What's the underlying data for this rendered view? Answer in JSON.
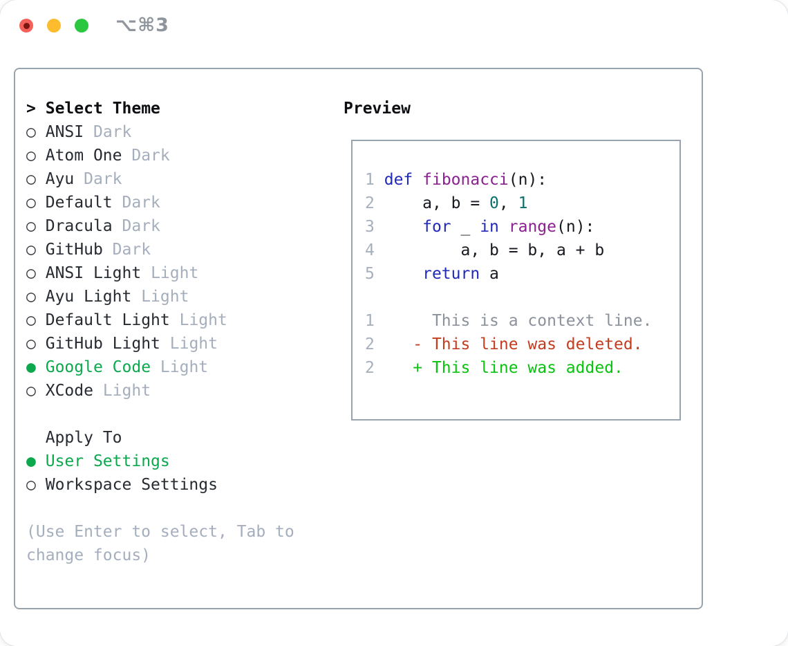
{
  "window": {
    "title": "⌥⌘3"
  },
  "theme_picker": {
    "header_marker": ">",
    "header": "Select Theme",
    "unselected_marker": "○",
    "selected_marker": "●",
    "items": [
      {
        "name": "ANSI",
        "variant": "Dark",
        "selected": false
      },
      {
        "name": "Atom One",
        "variant": "Dark",
        "selected": false
      },
      {
        "name": "Ayu",
        "variant": "Dark",
        "selected": false
      },
      {
        "name": "Default",
        "variant": "Dark",
        "selected": false
      },
      {
        "name": "Dracula",
        "variant": "Dark",
        "selected": false
      },
      {
        "name": "GitHub",
        "variant": "Dark",
        "selected": false
      },
      {
        "name": "ANSI Light",
        "variant": "Light",
        "selected": false
      },
      {
        "name": "Ayu Light",
        "variant": "Light",
        "selected": false
      },
      {
        "name": "Default Light",
        "variant": "Light",
        "selected": false
      },
      {
        "name": "GitHub Light",
        "variant": "Light",
        "selected": false
      },
      {
        "name": "Google Code",
        "variant": "Light",
        "selected": true
      },
      {
        "name": "XCode",
        "variant": "Light",
        "selected": false
      }
    ]
  },
  "apply_to": {
    "header": "Apply To",
    "options": [
      {
        "label": "User Settings",
        "selected": true
      },
      {
        "label": "Workspace Settings",
        "selected": false
      }
    ]
  },
  "help_text": [
    "(Use Enter to select, Tab to",
    "change focus)"
  ],
  "preview": {
    "header": "Preview",
    "code_lines": [
      {
        "num": "1",
        "segments": [
          {
            "t": " ",
            "c": "pln"
          },
          {
            "t": "def",
            "c": "kwd"
          },
          {
            "t": " ",
            "c": "pln"
          },
          {
            "t": "fibonacci",
            "c": "fn"
          },
          {
            "t": "(n):",
            "c": "pln"
          }
        ]
      },
      {
        "num": "2",
        "segments": [
          {
            "t": "     a, b = ",
            "c": "pln"
          },
          {
            "t": "0",
            "c": "num"
          },
          {
            "t": ", ",
            "c": "pln"
          },
          {
            "t": "1",
            "c": "num"
          }
        ]
      },
      {
        "num": "3",
        "segments": [
          {
            "t": "     ",
            "c": "pln"
          },
          {
            "t": "for",
            "c": "kwd"
          },
          {
            "t": " _ ",
            "c": "pln"
          },
          {
            "t": "in",
            "c": "kwd"
          },
          {
            "t": " ",
            "c": "pln"
          },
          {
            "t": "range",
            "c": "fn"
          },
          {
            "t": "(n):",
            "c": "pln"
          }
        ]
      },
      {
        "num": "4",
        "segments": [
          {
            "t": "         a, b = b, a + b",
            "c": "pln"
          }
        ]
      },
      {
        "num": "5",
        "segments": [
          {
            "t": "     ",
            "c": "pln"
          },
          {
            "t": "return",
            "c": "kwd"
          },
          {
            "t": " a",
            "c": "pln"
          }
        ]
      },
      {
        "num": "",
        "segments": []
      },
      {
        "num": "1",
        "segments": [
          {
            "t": "      This is a context line.",
            "c": "ctx"
          }
        ]
      },
      {
        "num": "2",
        "segments": [
          {
            "t": "    ",
            "c": "pln"
          },
          {
            "t": "- This line was deleted.",
            "c": "del"
          }
        ]
      },
      {
        "num": "2",
        "segments": [
          {
            "t": "    ",
            "c": "pln"
          },
          {
            "t": "+ This line was added.",
            "c": "add"
          }
        ]
      }
    ]
  },
  "colors": {
    "accent_green": "#0ca84e",
    "frame_border": "#99a3ad",
    "keyword_blue": "#2029b8",
    "function_magenta": "#8c2092",
    "number_teal": "#0b6f6b",
    "diff_red": "#c43b1e",
    "diff_green": "#08c30d",
    "muted_gray": "#a5aebc",
    "line_number_gray": "#a6b0bd",
    "traffic_red": "#f4605a",
    "traffic_yellow": "#fdbc2e",
    "traffic_green": "#2cc740"
  }
}
